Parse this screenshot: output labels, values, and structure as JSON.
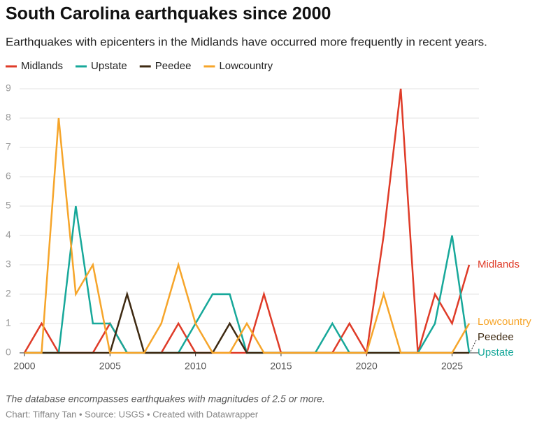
{
  "chart_data": {
    "type": "line",
    "title": "South Carolina earthquakes since 2000",
    "subtitle": "Earthquakes with epicenters in the Midlands have occurred more frequently in recent years.",
    "note": "The database encompasses earthquakes with magnitudes of 2.5 or more.",
    "credit": "Chart: Tiffany Tan • Source: USGS • Created with Datawrapper",
    "x": [
      2000,
      2001,
      2002,
      2003,
      2004,
      2005,
      2006,
      2007,
      2008,
      2009,
      2010,
      2011,
      2012,
      2013,
      2014,
      2015,
      2016,
      2017,
      2018,
      2019,
      2020,
      2021,
      2022,
      2023,
      2024,
      2025,
      2026
    ],
    "series": [
      {
        "name": "Midlands",
        "color": "#df3b28",
        "values": [
          0,
          1,
          0,
          0,
          0,
          1,
          0,
          0,
          0,
          1,
          0,
          0,
          0,
          0,
          2,
          0,
          0,
          0,
          0,
          1,
          0,
          4,
          9,
          0,
          2,
          1,
          3
        ]
      },
      {
        "name": "Upstate",
        "color": "#17a89a",
        "values": [
          0,
          0,
          0,
          5,
          1,
          1,
          0,
          0,
          0,
          0,
          1,
          2,
          2,
          0,
          0,
          0,
          0,
          0,
          1,
          0,
          0,
          0,
          0,
          0,
          1,
          4,
          0
        ]
      },
      {
        "name": "Peedee",
        "color": "#3e2a12",
        "values": [
          0,
          0,
          0,
          0,
          0,
          0,
          2,
          0,
          0,
          0,
          0,
          0,
          1,
          0,
          0,
          0,
          0,
          0,
          0,
          0,
          0,
          0,
          0,
          0,
          0,
          0,
          0
        ]
      },
      {
        "name": "Lowcountry",
        "color": "#f6a52a",
        "values": [
          0,
          0,
          8,
          2,
          3,
          0,
          0,
          0,
          1,
          3,
          1,
          0,
          0,
          1,
          0,
          0,
          0,
          0,
          0,
          0,
          0,
          2,
          0,
          0,
          0,
          0,
          1
        ]
      }
    ],
    "xlim": [
      2000,
      2026
    ],
    "xticks": [
      2000,
      2005,
      2010,
      2015,
      2020,
      2025
    ],
    "ylim": [
      0,
      9
    ],
    "yticks": [
      0,
      1,
      2,
      3,
      4,
      5,
      6,
      7,
      8,
      9
    ],
    "grid": true,
    "legend": "top"
  }
}
